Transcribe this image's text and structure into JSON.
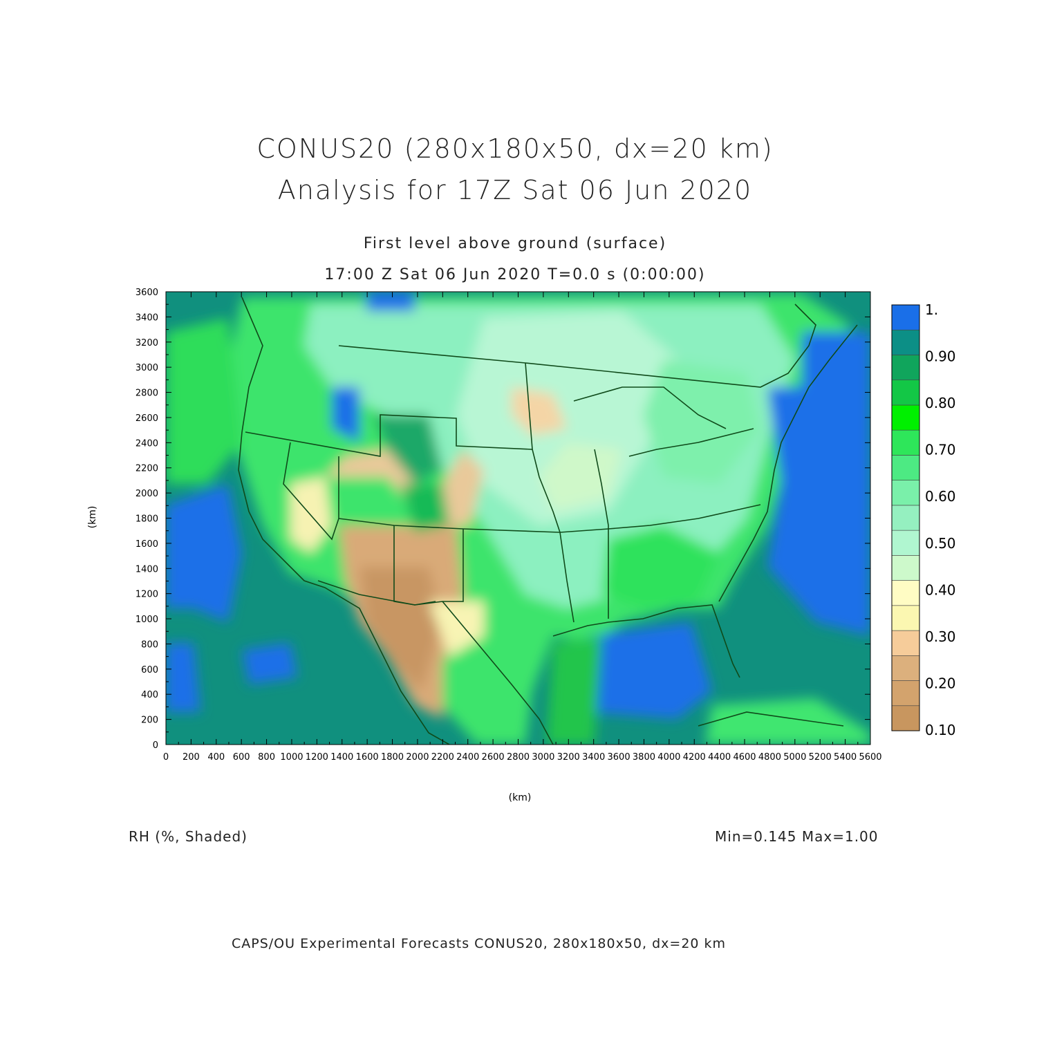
{
  "header": {
    "title_line1": "CONUS20 (280x180x50, dx=20 km)",
    "title_line2": "Analysis for 17Z Sat 06 Jun 2020",
    "subtitle_line1": "First level above ground (surface)",
    "subtitle_line2": "17:00 Z Sat 06 Jun 2020    T=0.0 s (0:00:00)"
  },
  "axes": {
    "xlabel": "(km)",
    "ylabel": "(km)",
    "x_ticks": [
      0,
      200,
      400,
      600,
      800,
      1000,
      1200,
      1400,
      1600,
      1800,
      2000,
      2200,
      2400,
      2600,
      2800,
      3000,
      3200,
      3400,
      3600,
      3800,
      4000,
      4200,
      4400,
      4600,
      4800,
      5000,
      5200,
      5400,
      5600
    ],
    "y_ticks": [
      0,
      200,
      400,
      600,
      800,
      1000,
      1200,
      1400,
      1600,
      1800,
      2000,
      2200,
      2400,
      2600,
      2800,
      3000,
      3200,
      3400,
      3600
    ],
    "xlim": [
      0,
      5600
    ],
    "ylim": [
      0,
      3600
    ]
  },
  "colorbar": {
    "labels": [
      "0.10",
      "0.20",
      "0.30",
      "0.40",
      "0.50",
      "0.60",
      "0.70",
      "0.80",
      "0.90",
      "1."
    ],
    "colors": [
      "#c8965f",
      "#d3a36d",
      "#dcb07d",
      "#f6cc9a",
      "#fbf7b1",
      "#fffcc4",
      "#cdf9cb",
      "#b0f6d0",
      "#95f0c0",
      "#7af0aa",
      "#4dea83",
      "#2ee65a",
      "#00f000",
      "#13c746",
      "#10a55c",
      "#0c8f86",
      "#1a6fe8"
    ]
  },
  "footer": {
    "field_label": "RH (%, Shaded)",
    "minmax": "Min=0.145  Max=1.00",
    "credit": "CAPS/OU Experimental Forecasts  CONUS20, 280x180x50, dx=20 km"
  }
}
